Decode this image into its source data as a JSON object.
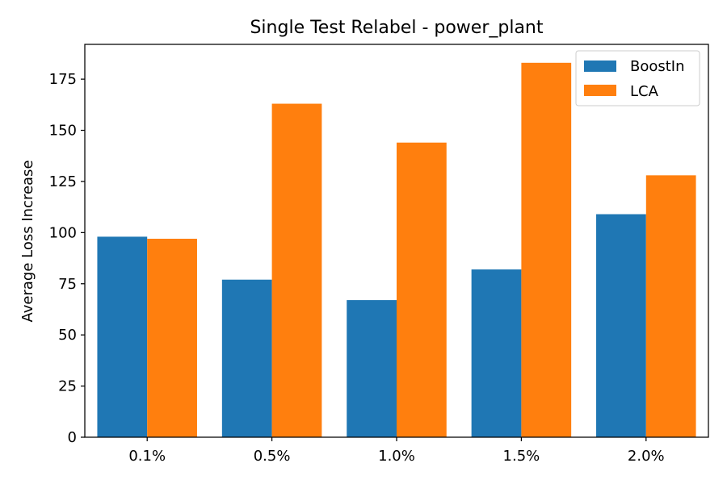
{
  "chart_data": {
    "type": "bar",
    "title": "Single Test Relabel - power_plant",
    "xlabel": "",
    "ylabel": "Average Loss Increase",
    "categories": [
      "0.1%",
      "0.5%",
      "1.0%",
      "1.5%",
      "2.0%"
    ],
    "series": [
      {
        "name": "BoostIn",
        "color": "#1f77b4",
        "values": [
          98,
          77,
          67,
          82,
          109
        ]
      },
      {
        "name": "LCA",
        "color": "#ff7f0e",
        "values": [
          97,
          163,
          144,
          183,
          128
        ]
      }
    ],
    "ylim": [
      0,
      192
    ],
    "yticks": [
      0,
      25,
      50,
      75,
      100,
      125,
      150,
      175
    ],
    "grid": false,
    "legend_position": "top-right"
  }
}
